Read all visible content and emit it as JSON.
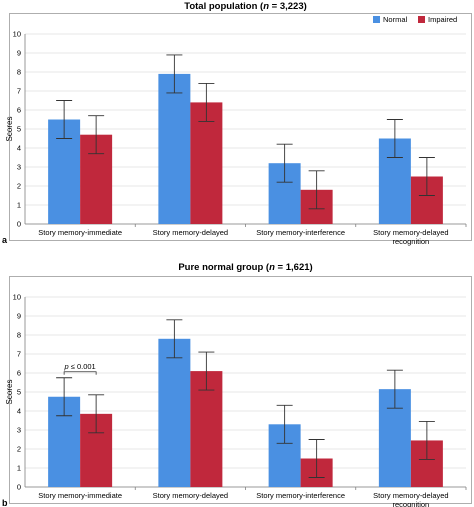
{
  "colors": {
    "normal": "#4a90e2",
    "impaired": "#c0283c",
    "grid": "#d0d0d0",
    "error": "#333333"
  },
  "legend": [
    "Normal",
    "Impaired"
  ],
  "chart_data": [
    {
      "type": "bar",
      "panel_label": "a",
      "title_main": "Total population (",
      "title_n": "n",
      "title_rest": " = 3,223)",
      "ylabel": "Scores",
      "ylim": [
        0,
        10
      ],
      "yticks": [
        "0",
        "1",
        "2",
        "3",
        "4",
        "5",
        "6",
        "7",
        "8",
        "9",
        "10"
      ],
      "categories": [
        [
          "Story memory-immediate"
        ],
        [
          "Story memory-delayed"
        ],
        [
          "Story memory-interference"
        ],
        [
          "Story memory-delayed",
          "recognition"
        ]
      ],
      "series": [
        {
          "name": "Normal",
          "values": [
            5.5,
            7.9,
            3.2,
            4.5
          ],
          "errors": [
            1.0,
            1.0,
            1.0,
            1.0
          ]
        },
        {
          "name": "Impaired",
          "values": [
            4.7,
            6.4,
            1.8,
            2.5
          ],
          "errors": [
            1.0,
            1.0,
            1.0,
            1.0
          ]
        }
      ],
      "legend_position": "top-right"
    },
    {
      "type": "bar",
      "panel_label": "b",
      "title_main": "Pure normal group (",
      "title_n": "n",
      "title_rest": " = 1,621)",
      "ylabel": "Scores",
      "ylim": [
        0,
        10
      ],
      "yticks": [
        "0",
        "1",
        "2",
        "3",
        "4",
        "5",
        "6",
        "7",
        "8",
        "9",
        "10"
      ],
      "categories": [
        [
          "Story memory-immediate"
        ],
        [
          "Story memory-delayed"
        ],
        [
          "Story memory-interference"
        ],
        [
          "Story memory-delayed",
          "recognition"
        ]
      ],
      "series": [
        {
          "name": "Normal",
          "values": [
            4.75,
            7.8,
            3.3,
            5.15
          ],
          "errors": [
            1.0,
            1.0,
            1.0,
            1.0
          ]
        },
        {
          "name": "Impaired",
          "values": [
            3.85,
            6.1,
            1.5,
            2.45
          ],
          "errors": [
            1.0,
            1.0,
            1.0,
            1.0
          ]
        }
      ],
      "annotation": {
        "italic": "p",
        "text": " ≤ 0.001",
        "category_index": 0
      }
    }
  ]
}
